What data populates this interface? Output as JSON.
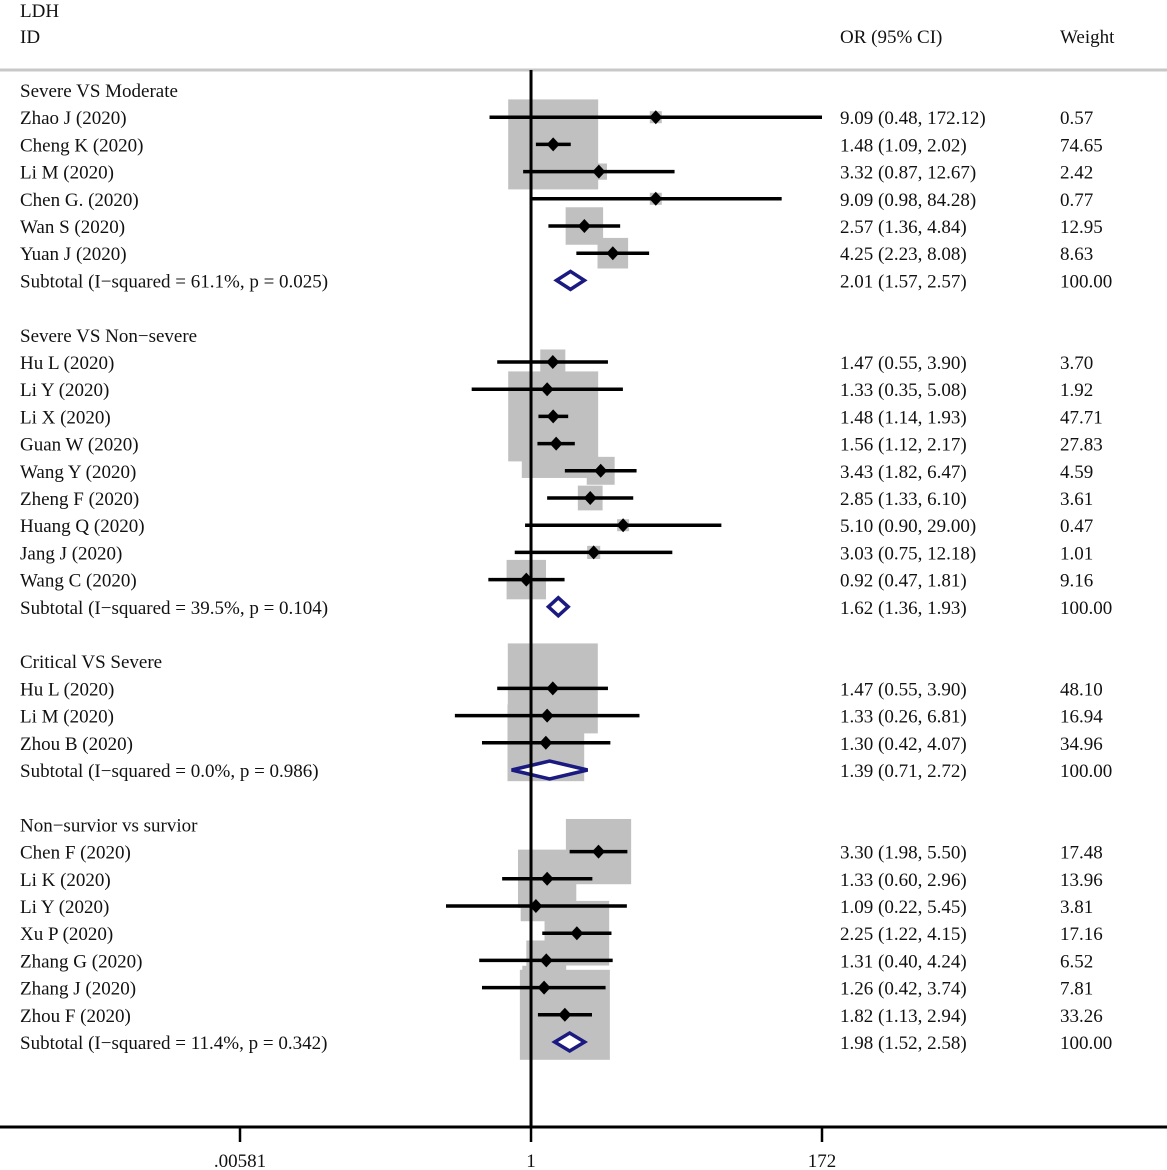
{
  "header": {
    "outcome": "LDH",
    "id_label": "ID",
    "or_label": "OR (95% CI)",
    "weight_label": "Weight"
  },
  "axis": {
    "ticks": [
      {
        "value": 0.00581,
        "label": ".00581"
      },
      {
        "value": 1,
        "label": "1"
      },
      {
        "value": 172,
        "label": "172"
      }
    ]
  },
  "colors": {
    "estimate": "#000000",
    "weight_box": "#c0c0c0",
    "subtotal_diamond": "#1a1a80",
    "separator": "#c8c8c8"
  },
  "chart_data": {
    "type": "forest",
    "scale": "log",
    "xlim": [
      0.00581,
      172
    ],
    "reference_line": 1,
    "groups": [
      {
        "name": "Severe VS Moderate",
        "studies": [
          {
            "label": "Zhao J  (2020)",
            "or": 9.09,
            "lo": 0.48,
            "hi": 172.12,
            "ci_text": "9.09 (0.48, 172.12)",
            "weight": "0.57"
          },
          {
            "label": "Cheng K  (2020)",
            "or": 1.48,
            "lo": 1.09,
            "hi": 2.02,
            "ci_text": "1.48 (1.09, 2.02)",
            "weight": "74.65"
          },
          {
            "label": "Li M  (2020)",
            "or": 3.32,
            "lo": 0.87,
            "hi": 12.67,
            "ci_text": "3.32 (0.87, 12.67)",
            "weight": "2.42"
          },
          {
            "label": "Chen G.  (2020)",
            "or": 9.09,
            "lo": 0.98,
            "hi": 84.28,
            "ci_text": "9.09 (0.98, 84.28)",
            "weight": "0.77"
          },
          {
            "label": "Wan S  (2020)",
            "or": 2.57,
            "lo": 1.36,
            "hi": 4.84,
            "ci_text": "2.57 (1.36, 4.84)",
            "weight": "12.95"
          },
          {
            "label": "Yuan J  (2020)",
            "or": 4.25,
            "lo": 2.23,
            "hi": 8.08,
            "ci_text": "4.25 (2.23, 8.08)",
            "weight": "8.63"
          }
        ],
        "subtotal": {
          "label": "Subtotal  (I−squared = 61.1%, p = 0.025)",
          "or": 2.01,
          "lo": 1.57,
          "hi": 2.57,
          "ci_text": "2.01 (1.57, 2.57)",
          "weight": "100.00"
        }
      },
      {
        "name": "Severe VS Non−severe",
        "studies": [
          {
            "label": "Hu L  (2020)",
            "or": 1.47,
            "lo": 0.55,
            "hi": 3.9,
            "ci_text": "1.47 (0.55, 3.90)",
            "weight": "3.70"
          },
          {
            "label": "Li Y  (2020)",
            "or": 1.33,
            "lo": 0.35,
            "hi": 5.08,
            "ci_text": "1.33 (0.35, 5.08)",
            "weight": "1.92"
          },
          {
            "label": "Li X  (2020)",
            "or": 1.48,
            "lo": 1.14,
            "hi": 1.93,
            "ci_text": "1.48 (1.14, 1.93)",
            "weight": "47.71"
          },
          {
            "label": "Guan W  (2020)",
            "or": 1.56,
            "lo": 1.12,
            "hi": 2.17,
            "ci_text": "1.56 (1.12, 2.17)",
            "weight": "27.83"
          },
          {
            "label": "Wang Y  (2020)",
            "or": 3.43,
            "lo": 1.82,
            "hi": 6.47,
            "ci_text": "3.43 (1.82, 6.47)",
            "weight": "4.59"
          },
          {
            "label": "Zheng F  (2020)",
            "or": 2.85,
            "lo": 1.33,
            "hi": 6.1,
            "ci_text": "2.85 (1.33, 6.10)",
            "weight": "3.61"
          },
          {
            "label": "Huang Q  (2020)",
            "or": 5.1,
            "lo": 0.9,
            "hi": 29.0,
            "ci_text": "5.10 (0.90, 29.00)",
            "weight": "0.47"
          },
          {
            "label": "Jang J  (2020)",
            "or": 3.03,
            "lo": 0.75,
            "hi": 12.18,
            "ci_text": "3.03 (0.75, 12.18)",
            "weight": "1.01"
          },
          {
            "label": "Wang C  (2020)",
            "or": 0.92,
            "lo": 0.47,
            "hi": 1.81,
            "ci_text": "0.92 (0.47, 1.81)",
            "weight": "9.16"
          }
        ],
        "subtotal": {
          "label": "Subtotal  (I−squared = 39.5%, p = 0.104)",
          "or": 1.62,
          "lo": 1.36,
          "hi": 1.93,
          "ci_text": "1.62 (1.36, 1.93)",
          "weight": "100.00"
        }
      },
      {
        "name": "Critical VS Severe",
        "studies": [
          {
            "label": "Hu L  (2020)",
            "or": 1.47,
            "lo": 0.55,
            "hi": 3.9,
            "ci_text": "1.47 (0.55, 3.90)",
            "weight": "48.10"
          },
          {
            "label": "Li M  (2020)",
            "or": 1.33,
            "lo": 0.26,
            "hi": 6.81,
            "ci_text": "1.33 (0.26, 6.81)",
            "weight": "16.94"
          },
          {
            "label": "Zhou B  (2020)",
            "or": 1.3,
            "lo": 0.42,
            "hi": 4.07,
            "ci_text": "1.30 (0.42, 4.07)",
            "weight": "34.96"
          }
        ],
        "subtotal": {
          "label": "Subtotal  (I−squared = 0.0%, p = 0.986)",
          "or": 1.39,
          "lo": 0.71,
          "hi": 2.72,
          "ci_text": "1.39 (0.71, 2.72)",
          "weight": "100.00"
        }
      },
      {
        "name": "Non−survior vs survior",
        "studies": [
          {
            "label": "Chen F  (2020)",
            "or": 3.3,
            "lo": 1.98,
            "hi": 5.5,
            "ci_text": "3.30 (1.98, 5.50)",
            "weight": "17.48"
          },
          {
            "label": "Li K  (2020)",
            "or": 1.33,
            "lo": 0.6,
            "hi": 2.96,
            "ci_text": "1.33 (0.60, 2.96)",
            "weight": "13.96"
          },
          {
            "label": "Li Y  (2020)",
            "or": 1.09,
            "lo": 0.22,
            "hi": 5.45,
            "ci_text": "1.09 (0.22, 5.45)",
            "weight": "3.81"
          },
          {
            "label": "Xu P  (2020)",
            "or": 2.25,
            "lo": 1.22,
            "hi": 4.15,
            "ci_text": "2.25 (1.22, 4.15)",
            "weight": "17.16"
          },
          {
            "label": "Zhang G  (2020)",
            "or": 1.31,
            "lo": 0.4,
            "hi": 4.24,
            "ci_text": "1.31 (0.40, 4.24)",
            "weight": "6.52"
          },
          {
            "label": "Zhang J  (2020)",
            "or": 1.26,
            "lo": 0.42,
            "hi": 3.74,
            "ci_text": "1.26 (0.42, 3.74)",
            "weight": "7.81"
          },
          {
            "label": "Zhou F  (2020)",
            "or": 1.82,
            "lo": 1.13,
            "hi": 2.94,
            "ci_text": "1.82 (1.13, 2.94)",
            "weight": "33.26"
          }
        ],
        "subtotal": {
          "label": "Subtotal  (I−squared = 11.4%, p = 0.342)",
          "or": 1.98,
          "lo": 1.52,
          "hi": 2.58,
          "ci_text": "1.98 (1.52, 2.58)",
          "weight": "100.00"
        }
      }
    ]
  }
}
